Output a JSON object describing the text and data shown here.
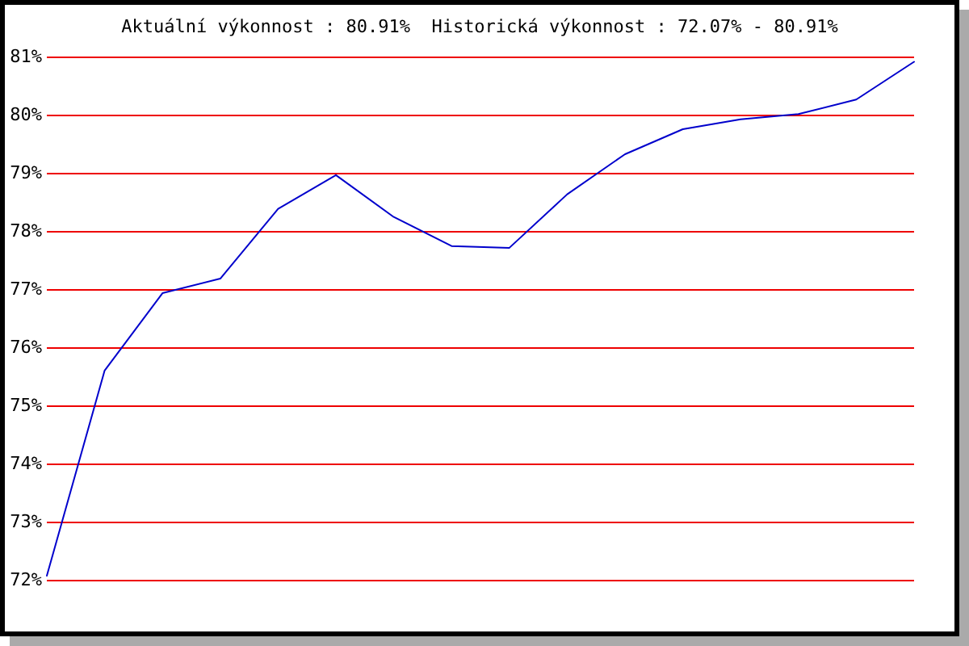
{
  "chart_data": {
    "type": "line",
    "title": "Aktuální výkonnost : 80.91%  Historická výkonnost : 72.07% - 80.91%",
    "categories": [
      null,
      null,
      null,
      null,
      null,
      null,
      null,
      null,
      null,
      null,
      null,
      null,
      null,
      null,
      null,
      null
    ],
    "series": [
      {
        "color": "#0000cc",
        "values": [
          72.07,
          75.6,
          76.93,
          77.18,
          78.38,
          78.96,
          78.24,
          77.74,
          77.71,
          78.63,
          79.32,
          79.75,
          79.92,
          80.01,
          80.26,
          80.91
        ]
      }
    ],
    "ylim": [
      72,
      81
    ],
    "yticks": [
      {
        "value": 72,
        "label": "72%"
      },
      {
        "value": 73,
        "label": "73%"
      },
      {
        "value": 74,
        "label": "74%"
      },
      {
        "value": 75,
        "label": "75%"
      },
      {
        "value": 76,
        "label": "76%"
      },
      {
        "value": 77,
        "label": "77%"
      },
      {
        "value": 78,
        "label": "78%"
      },
      {
        "value": 79,
        "label": "79%"
      },
      {
        "value": 80,
        "label": "80%"
      },
      {
        "value": 81,
        "label": "81%"
      }
    ],
    "grid": "y",
    "tick_labels": "y",
    "marker": "none",
    "line_style": "solid"
  }
}
